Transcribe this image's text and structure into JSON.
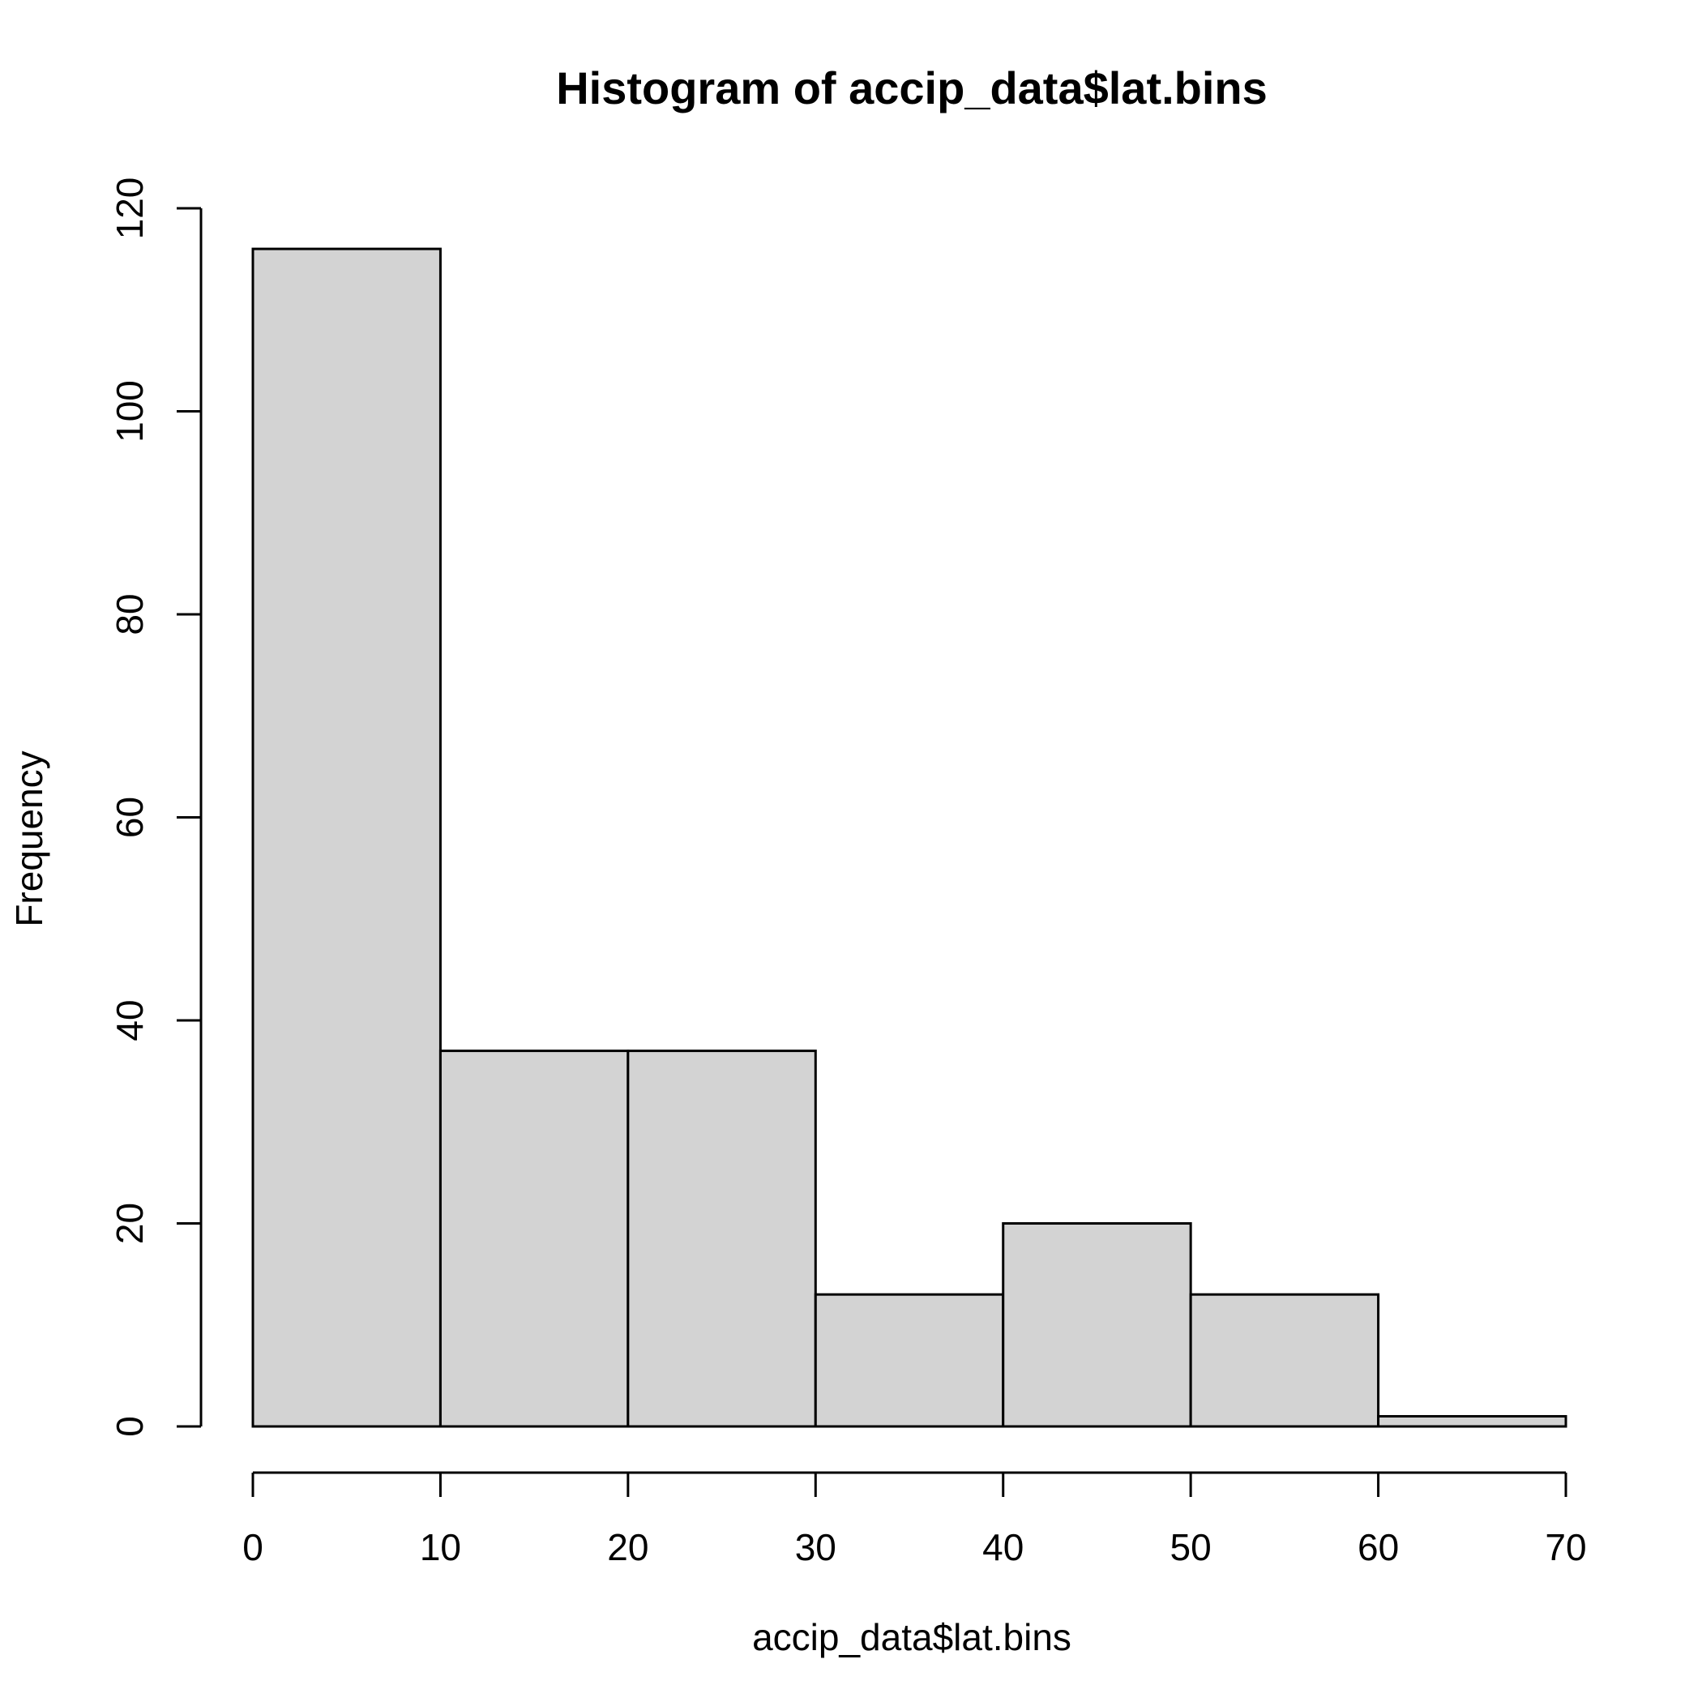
{
  "chart_data": {
    "type": "bar",
    "title": "Histogram of accip_data$lat.bins",
    "xlabel": "accip_data$lat.bins",
    "ylabel": "Frequency",
    "bins": [
      {
        "start": 0,
        "end": 10,
        "count": 116
      },
      {
        "start": 10,
        "end": 20,
        "count": 37
      },
      {
        "start": 20,
        "end": 30,
        "count": 37
      },
      {
        "start": 30,
        "end": 40,
        "count": 13
      },
      {
        "start": 40,
        "end": 50,
        "count": 20
      },
      {
        "start": 50,
        "end": 60,
        "count": 13
      },
      {
        "start": 60,
        "end": 70,
        "count": 1
      }
    ],
    "xlim": [
      0,
      70
    ],
    "ylim": [
      0,
      120
    ],
    "x_ticks": [
      "0",
      "10",
      "20",
      "30",
      "40",
      "50",
      "60",
      "70"
    ],
    "y_ticks": [
      "0",
      "20",
      "40",
      "60",
      "80",
      "100",
      "120"
    ],
    "grid": false,
    "bar_fill": "#d3d3d3",
    "bar_stroke": "#000000"
  }
}
